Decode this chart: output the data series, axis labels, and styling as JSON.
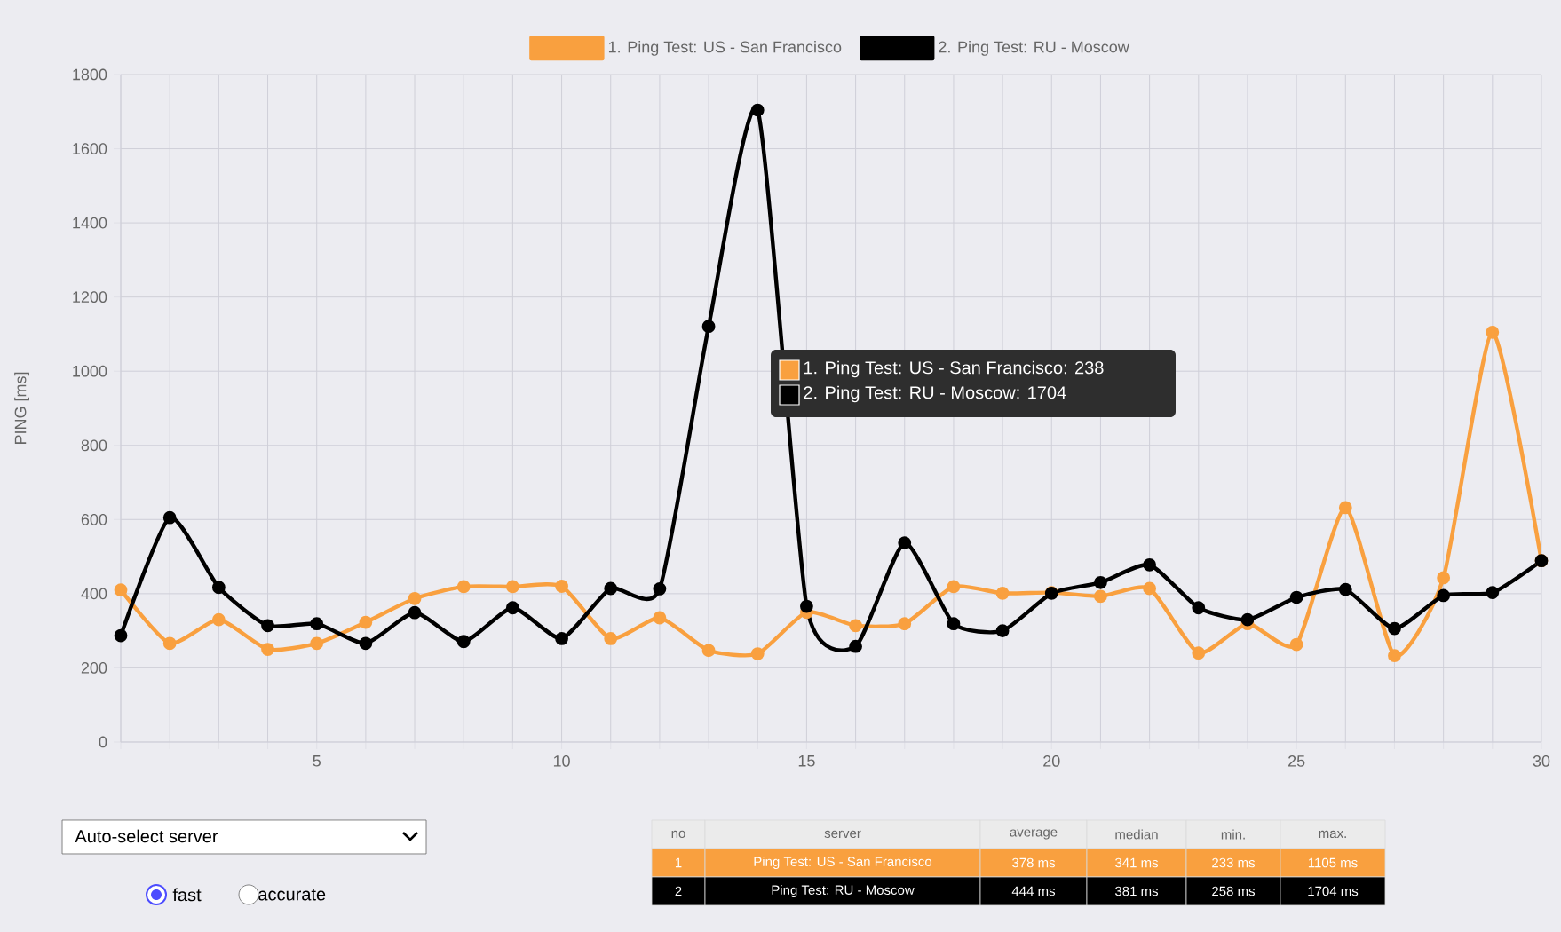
{
  "chart_data": {
    "type": "line",
    "ylabel": "PING [ms]",
    "x": [
      1,
      2,
      3,
      4,
      5,
      6,
      7,
      8,
      9,
      10,
      11,
      12,
      13,
      14,
      15,
      16,
      17,
      18,
      19,
      20,
      21,
      22,
      23,
      24,
      25,
      26,
      27,
      28,
      29,
      30
    ],
    "series": [
      {
        "name": "1. Ping Test: US - San Francisco",
        "color": "#f9a03f",
        "values": [
          410,
          266,
          330,
          250,
          266,
          323,
          387,
          419,
          419,
          420,
          279,
          335,
          247,
          238,
          350,
          314,
          319,
          419,
          401,
          403,
          393,
          414,
          240,
          319,
          263,
          632,
          233,
          443,
          1105,
          489
        ]
      },
      {
        "name": "2. Ping Test: RU - Moscow",
        "color": "#000000",
        "values": [
          287,
          605,
          417,
          314,
          319,
          266,
          349,
          271,
          362,
          279,
          414,
          413,
          1121,
          1704,
          366,
          258,
          537,
          319,
          300,
          401,
          430,
          478,
          362,
          330,
          390,
          411,
          306,
          395,
          403,
          489
        ]
      }
    ],
    "xlim": [
      1,
      30
    ],
    "xticks": [
      {
        "value": 1,
        "label": null
      },
      {
        "value": 2,
        "label": null
      },
      {
        "value": 3,
        "label": null
      },
      {
        "value": 4,
        "label": null
      },
      5,
      {
        "value": 6,
        "label": null
      },
      {
        "value": 7,
        "label": null
      },
      {
        "value": 8,
        "label": null
      },
      {
        "value": 9,
        "label": null
      },
      10,
      {
        "value": 11,
        "label": null
      },
      {
        "value": 12,
        "label": null
      },
      {
        "value": 13,
        "label": null
      },
      {
        "value": 14,
        "label": null
      },
      15,
      {
        "value": 16,
        "label": null
      },
      {
        "value": 17,
        "label": null
      },
      {
        "value": 18,
        "label": null
      },
      {
        "value": 19,
        "label": null
      },
      20,
      {
        "value": 21,
        "label": null
      },
      {
        "value": 22,
        "label": null
      },
      {
        "value": 23,
        "label": null
      },
      {
        "value": 24,
        "label": null
      },
      25,
      {
        "value": 26,
        "label": null
      },
      {
        "value": 27,
        "label": null
      },
      {
        "value": 28,
        "label": null
      },
      {
        "value": 29,
        "label": null
      },
      30
    ],
    "ylim": [
      0,
      1800
    ],
    "yticks": [
      0,
      200,
      400,
      600,
      800,
      1000,
      1200,
      1400,
      1600,
      1800
    ],
    "grid": true,
    "legend": "top",
    "marker": "circle",
    "line_style": "solid",
    "annotations": [
      "1. Ping Test: US - San Francisco: 238",
      "2. Ping Test: RU - Moscow: 1704",
      "Auto-select server",
      "fast",
      "accurate",
      "no",
      "server",
      "average",
      "median",
      "min.",
      "max.",
      "1",
      "Ping Test: US - San Francisco",
      "378 ms",
      "341 ms",
      "233 ms",
      "1105 ms",
      "2",
      "Ping Test: RU - Moscow",
      "444 ms",
      "381 ms",
      "258 ms",
      "1704 ms"
    ]
  }
}
